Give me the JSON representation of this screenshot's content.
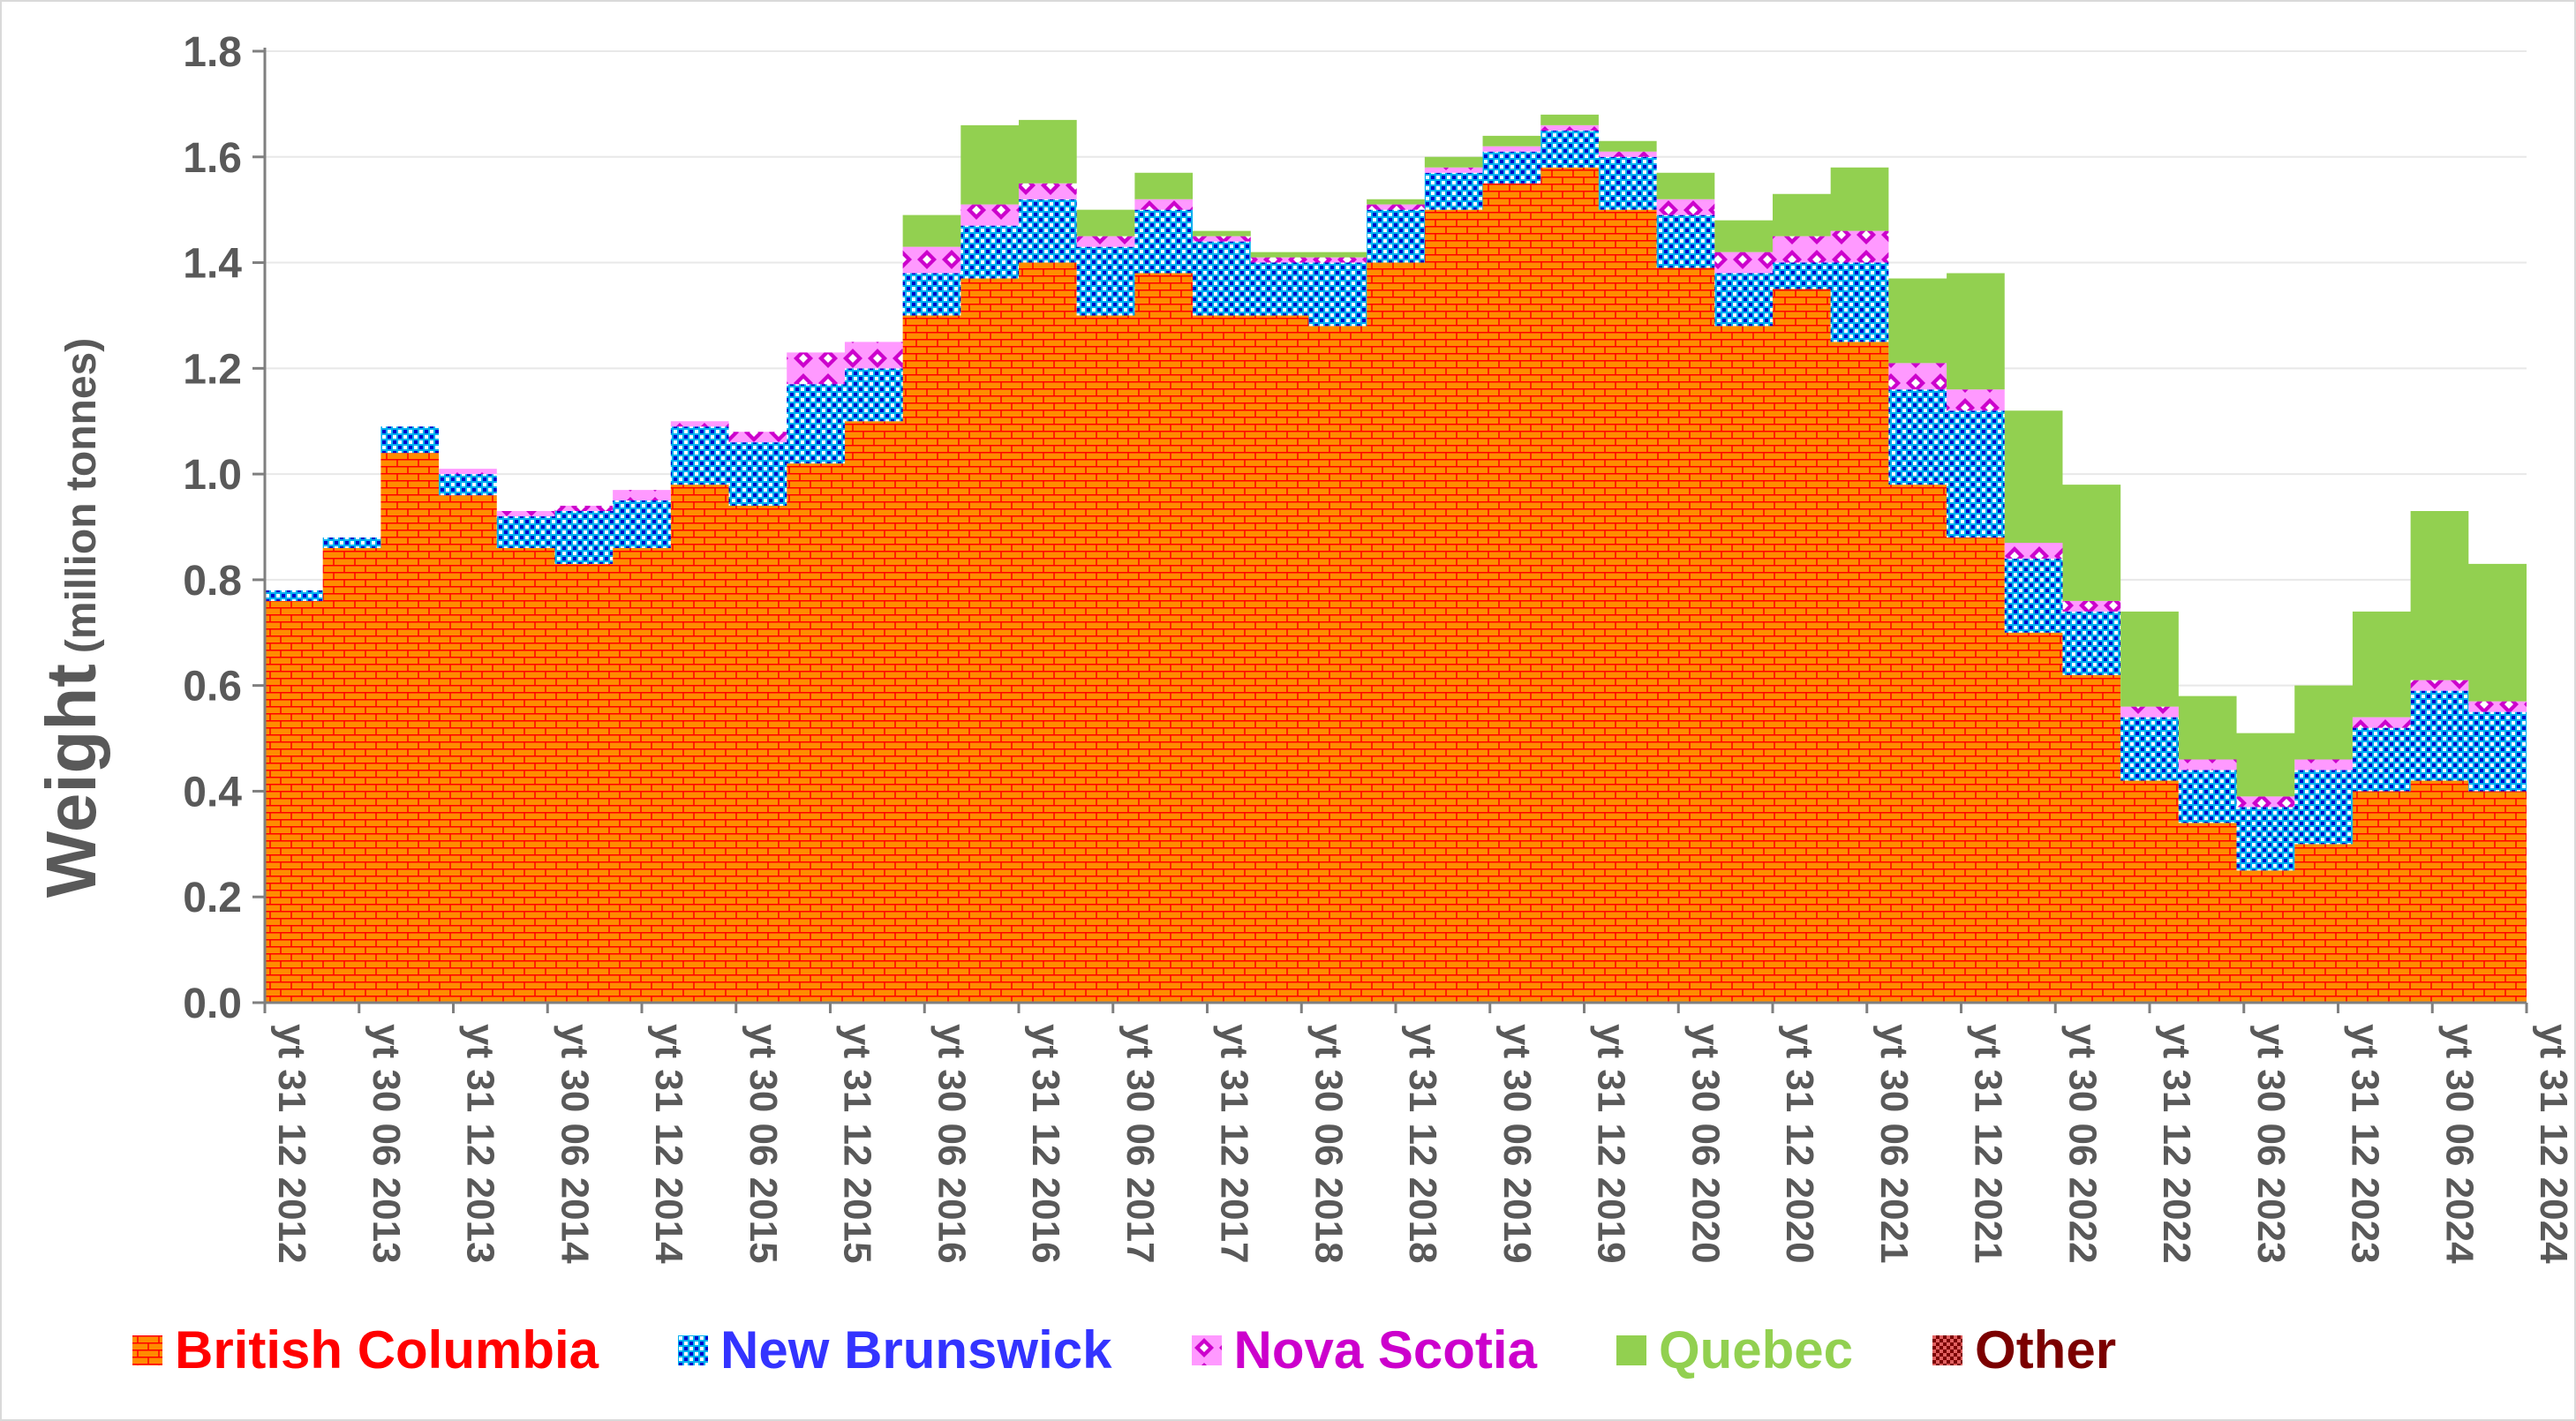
{
  "chart_data": {
    "type": "area",
    "stacked": true,
    "title": "",
    "ylabel_main": "Weight",
    "ylabel_unit": "(million tonnes)",
    "ylim": [
      0,
      1.8
    ],
    "yticks": [
      "0.0",
      "0.2",
      "0.4",
      "0.6",
      "0.8",
      "1.0",
      "1.2",
      "1.4",
      "1.6",
      "1.8"
    ],
    "xtick_labels": [
      "yt 31 12 2012",
      "yt 30 06 2013",
      "yt 31 12 2013",
      "yt 30 06 2014",
      "yt 31 12 2014",
      "yt 30 06 2015",
      "yt 31 12 2015",
      "yt 30 06 2016",
      "yt 31 12 2016",
      "yt 30 06 2017",
      "yt 31 12 2017",
      "yt 30 06 2018",
      "yt 31 12 2018",
      "yt 30 06 2019",
      "yt 31 12 2019",
      "yt 30 06 2020",
      "yt 31 12 2020",
      "yt 30 06 2021",
      "yt 31 12 2021",
      "yt 30 06 2022",
      "yt 31 12 2022",
      "yt 30 06 2023",
      "yt 31 12 2023",
      "yt 30 06 2024",
      "yt 31 12 2024"
    ],
    "legend_position": "bottom",
    "series": [
      {
        "name": "British Columbia",
        "color": "#ff8c00",
        "accent": "#ff0000",
        "pattern": "brick",
        "values": [
          0.76,
          0.86,
          1.04,
          0.96,
          0.86,
          0.83,
          0.86,
          0.98,
          0.94,
          1.02,
          1.1,
          1.3,
          1.37,
          1.4,
          1.3,
          1.38,
          1.3,
          1.3,
          1.28,
          1.4,
          1.5,
          1.55,
          1.58,
          1.5,
          1.39,
          1.28,
          1.35,
          1.25,
          0.98,
          0.88,
          0.7,
          0.62,
          0.42,
          0.34,
          0.25,
          0.3,
          0.4,
          0.42,
          0.4
        ]
      },
      {
        "name": "New Brunswick",
        "color": "#00b0f0",
        "accent": "#0000ff",
        "pattern": "dots",
        "values": [
          0.02,
          0.02,
          0.05,
          0.04,
          0.06,
          0.1,
          0.09,
          0.11,
          0.12,
          0.15,
          0.1,
          0.08,
          0.1,
          0.12,
          0.13,
          0.12,
          0.14,
          0.1,
          0.12,
          0.1,
          0.07,
          0.06,
          0.07,
          0.1,
          0.1,
          0.1,
          0.05,
          0.15,
          0.18,
          0.24,
          0.14,
          0.12,
          0.12,
          0.1,
          0.12,
          0.14,
          0.12,
          0.17,
          0.15
        ]
      },
      {
        "name": "Nova Scotia",
        "color": "#cc00cc",
        "accent": "#ff66ff",
        "pattern": "diamond",
        "values": [
          0.0,
          0.0,
          0.0,
          0.01,
          0.01,
          0.01,
          0.02,
          0.01,
          0.02,
          0.06,
          0.05,
          0.05,
          0.04,
          0.03,
          0.02,
          0.02,
          0.01,
          0.01,
          0.01,
          0.01,
          0.01,
          0.01,
          0.01,
          0.01,
          0.03,
          0.04,
          0.05,
          0.06,
          0.05,
          0.04,
          0.03,
          0.02,
          0.02,
          0.02,
          0.02,
          0.02,
          0.02,
          0.02,
          0.02
        ]
      },
      {
        "name": "Quebec",
        "color": "#92d050",
        "accent": "#92d050",
        "pattern": "solid",
        "values": [
          0.0,
          0.0,
          0.0,
          0.0,
          0.0,
          0.0,
          0.0,
          0.0,
          0.0,
          0.0,
          0.0,
          0.06,
          0.15,
          0.12,
          0.05,
          0.05,
          0.01,
          0.01,
          0.01,
          0.01,
          0.02,
          0.02,
          0.02,
          0.02,
          0.05,
          0.06,
          0.08,
          0.12,
          0.16,
          0.22,
          0.25,
          0.22,
          0.18,
          0.12,
          0.12,
          0.14,
          0.2,
          0.32,
          0.26
        ]
      },
      {
        "name": "Other",
        "color": "#7b0000",
        "accent": "#c00000",
        "pattern": "check",
        "values": [
          0.0,
          0.0,
          0.0,
          0.0,
          0.0,
          0.0,
          0.0,
          0.0,
          0.0,
          0.0,
          0.0,
          0.0,
          0.0,
          0.0,
          0.0,
          0.0,
          0.0,
          0.0,
          0.0,
          0.0,
          0.0,
          0.0,
          0.0,
          0.0,
          0.0,
          0.0,
          0.0,
          0.0,
          0.0,
          0.0,
          0.0,
          0.0,
          0.0,
          0.0,
          0.0,
          0.0,
          0.0,
          0.0,
          0.0
        ]
      }
    ]
  },
  "legend": {
    "items": [
      {
        "label": "British Columbia",
        "color": "#ff0000"
      },
      {
        "label": "New Brunswick",
        "color": "#3333ff"
      },
      {
        "label": "Nova Scotia",
        "color": "#cc00cc"
      },
      {
        "label": "Quebec",
        "color": "#92d050"
      },
      {
        "label": "Other",
        "color": "#7b0000"
      }
    ]
  }
}
